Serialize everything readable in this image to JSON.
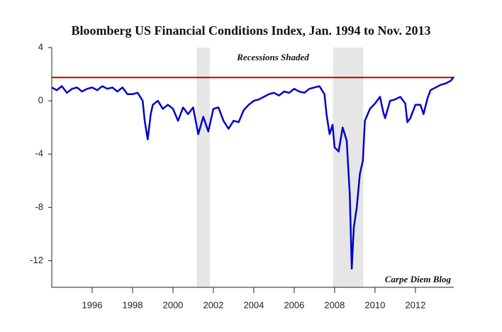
{
  "chart_data": {
    "type": "line",
    "title": "Bloomberg US Financial Conditions Index, Jan. 1994 to Nov. 2013",
    "annotations": [
      "Recessions Shaded",
      "Carpe Diem Blog"
    ],
    "recessions": [
      [
        2001.17,
        2001.83
      ],
      [
        2007.92,
        2009.42
      ]
    ],
    "recession_color": "#e6e6e6",
    "reference_line": 1.75,
    "reference_color": "#c00000",
    "xlim": [
      1994,
      2013.9
    ],
    "xticks": [
      1996,
      1998,
      2000,
      2002,
      2004,
      2006,
      2008,
      2010,
      2012
    ],
    "ylim": [
      -14,
      4
    ],
    "yticks": [
      4,
      0,
      -4,
      -8,
      -12
    ],
    "series": [
      {
        "name": "Bloomberg US Financial Conditions Index",
        "color": "#0000cc",
        "x": [
          1994.0,
          1994.25,
          1994.5,
          1994.75,
          1995.0,
          1995.25,
          1995.5,
          1995.75,
          1996.0,
          1996.25,
          1996.5,
          1996.75,
          1997.0,
          1997.25,
          1997.5,
          1997.75,
          1998.0,
          1998.25,
          1998.5,
          1998.6,
          1998.75,
          1998.9,
          1999.0,
          1999.25,
          1999.5,
          1999.75,
          2000.0,
          2000.25,
          2000.5,
          2000.75,
          2001.0,
          2001.25,
          2001.5,
          2001.75,
          2002.0,
          2002.25,
          2002.5,
          2002.75,
          2003.0,
          2003.25,
          2003.5,
          2003.75,
          2004.0,
          2004.25,
          2004.5,
          2004.75,
          2005.0,
          2005.25,
          2005.5,
          2005.75,
          2006.0,
          2006.25,
          2006.5,
          2006.75,
          2007.0,
          2007.25,
          2007.5,
          2007.6,
          2007.75,
          2007.9,
          2008.0,
          2008.2,
          2008.4,
          2008.6,
          2008.75,
          2008.85,
          2008.95,
          2009.1,
          2009.25,
          2009.4,
          2009.5,
          2009.75,
          2010.0,
          2010.25,
          2010.4,
          2010.5,
          2010.75,
          2011.0,
          2011.25,
          2011.5,
          2011.6,
          2011.75,
          2012.0,
          2012.25,
          2012.4,
          2012.6,
          2012.75,
          2013.0,
          2013.25,
          2013.5,
          2013.75,
          2013.9
        ],
        "values": [
          1.0,
          0.8,
          1.1,
          0.6,
          0.9,
          1.0,
          0.7,
          0.9,
          1.0,
          0.8,
          1.1,
          0.9,
          1.0,
          0.7,
          1.0,
          0.5,
          0.5,
          0.6,
          0.0,
          -1.5,
          -2.9,
          -1.0,
          -0.3,
          0.0,
          -0.6,
          -0.3,
          -0.6,
          -1.5,
          -0.5,
          -1.0,
          -0.5,
          -2.5,
          -1.2,
          -2.3,
          -0.6,
          -0.5,
          -1.5,
          -2.1,
          -1.5,
          -1.6,
          -0.7,
          -0.3,
          0.0,
          0.1,
          0.3,
          0.5,
          0.6,
          0.4,
          0.7,
          0.6,
          0.9,
          0.7,
          0.6,
          0.9,
          1.0,
          1.1,
          0.5,
          -1.0,
          -2.5,
          -1.8,
          -3.5,
          -3.8,
          -2.0,
          -3.0,
          -7,
          -12.6,
          -9.5,
          -8.0,
          -5.5,
          -4.5,
          -1.5,
          -0.6,
          -0.2,
          0.3,
          -0.8,
          -1.3,
          0.0,
          0.1,
          0.3,
          -0.2,
          -1.6,
          -1.3,
          -0.3,
          -0.3,
          -1.0,
          0.2,
          0.8,
          1.0,
          1.2,
          1.3,
          1.5,
          1.8
        ]
      }
    ]
  }
}
